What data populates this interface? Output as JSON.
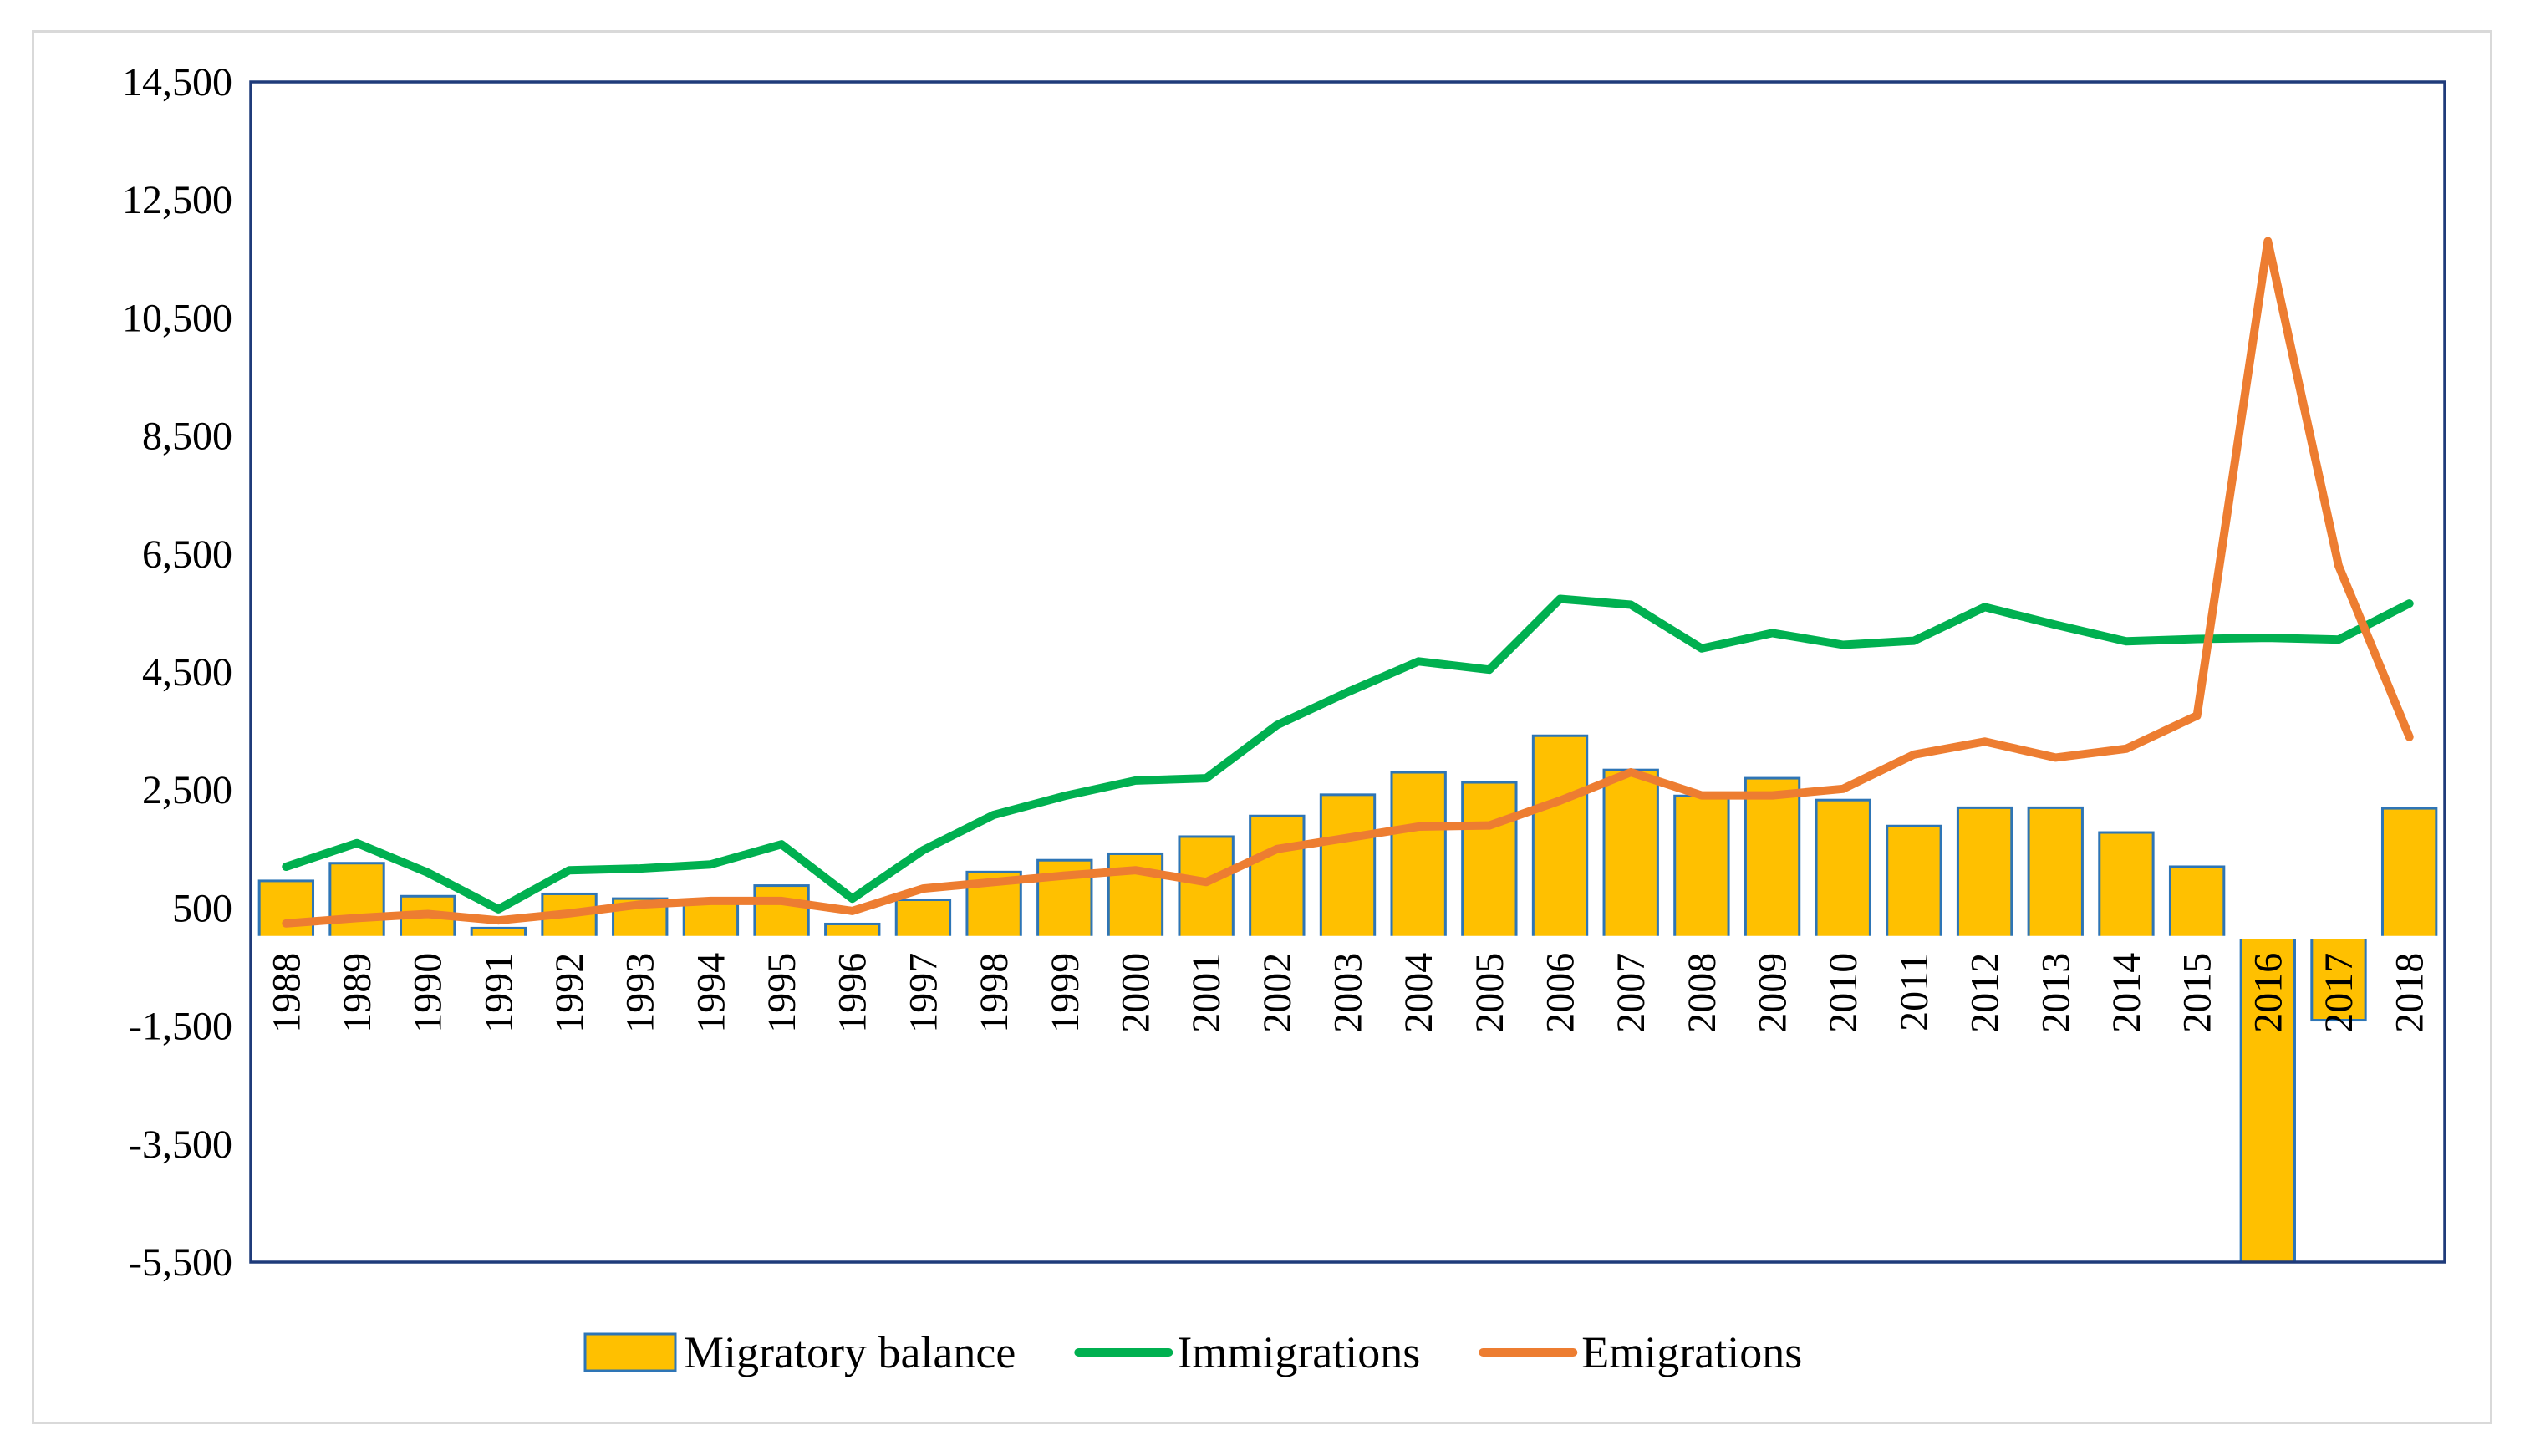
{
  "chart_data": {
    "type": "bar",
    "title": "",
    "xlabel": "",
    "ylabel": "",
    "categories": [
      "1988",
      "1989",
      "1990",
      "1991",
      "1992",
      "1993",
      "1994",
      "1995",
      "1996",
      "1997",
      "1998",
      "1999",
      "2000",
      "2001",
      "2002",
      "2003",
      "2004",
      "2005",
      "2006",
      "2007",
      "2008",
      "2009",
      "2010",
      "2011",
      "2012",
      "2013",
      "2014",
      "2015",
      "2016",
      "2017",
      "2018"
    ],
    "ylim": [
      -5500,
      14500
    ],
    "yticks": [
      14500,
      12500,
      10500,
      8500,
      6500,
      4500,
      2500,
      500,
      -1500,
      -3500,
      -5500
    ],
    "ytick_labels": [
      "14,500",
      "12,500",
      "10,500",
      "8,500",
      "6,500",
      "4,500",
      "2,500",
      "500",
      "-1,500",
      "-3,500",
      "-5,500"
    ],
    "series": [
      {
        "name": "Migratory balance",
        "type": "bar",
        "color": "#ffc000",
        "edge_color": "#2e75b6",
        "values": [
          960,
          1260,
          700,
          160,
          740,
          660,
          640,
          880,
          230,
          640,
          1110,
          1310,
          1420,
          1710,
          2060,
          2420,
          2800,
          2630,
          3420,
          2840,
          2400,
          2700,
          2330,
          1890,
          2200,
          2200,
          1780,
          1200,
          -5600,
          -1400,
          2190
        ]
      },
      {
        "name": "Immigrations",
        "type": "line",
        "color": "#00b050",
        "values": [
          1200,
          1600,
          1100,
          480,
          1140,
          1170,
          1240,
          1580,
          660,
          1480,
          2080,
          2400,
          2660,
          2700,
          3600,
          4160,
          4680,
          4540,
          5740,
          5640,
          4900,
          5160,
          4960,
          5030,
          5600,
          5300,
          5020,
          5060,
          5080,
          5050,
          5660
        ]
      },
      {
        "name": "Emigrations",
        "type": "line",
        "color": "#ed7d31",
        "values": [
          240,
          330,
          400,
          290,
          410,
          560,
          620,
          620,
          450,
          830,
          940,
          1050,
          1140,
          940,
          1500,
          1690,
          1880,
          1900,
          2320,
          2800,
          2410,
          2410,
          2520,
          3100,
          3320,
          3050,
          3200,
          3760,
          11800,
          6300,
          3400
        ]
      }
    ],
    "legend": {
      "position": "bottom",
      "entries": [
        "Migratory balance",
        "Immigrations",
        "Emigrations"
      ]
    }
  }
}
